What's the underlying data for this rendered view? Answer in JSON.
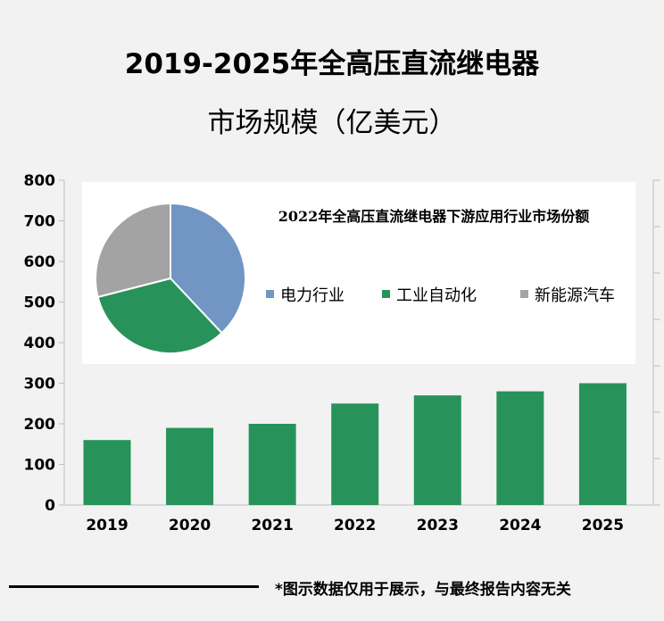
{
  "title_line1": "2019-2025年全高压直流继电器",
  "title_line2": "市场规模（亿美元）",
  "footer_note": "*图示数据仅用于展示，与最终报告内容无关",
  "chart_data": [
    {
      "type": "bar",
      "categories": [
        "2019",
        "2020",
        "2021",
        "2022",
        "2023",
        "2024",
        "2025"
      ],
      "values": [
        160,
        190,
        200,
        250,
        270,
        280,
        300
      ],
      "ylim": [
        0,
        800
      ],
      "yticks": [
        "0",
        "100",
        "200",
        "300",
        "400",
        "500",
        "600",
        "700",
        "800"
      ],
      "bar_color": "#27935a",
      "grid": false
    },
    {
      "type": "pie",
      "title": "2022年全高压直流继电器下游应用行业市场份额",
      "labels": [
        "电力行业",
        "工业自动化",
        "新能源汽车"
      ],
      "values": [
        38,
        33,
        29
      ],
      "colors": [
        "#7196c4",
        "#27935a",
        "#a3a3a3"
      ],
      "legend_position": "right"
    }
  ]
}
